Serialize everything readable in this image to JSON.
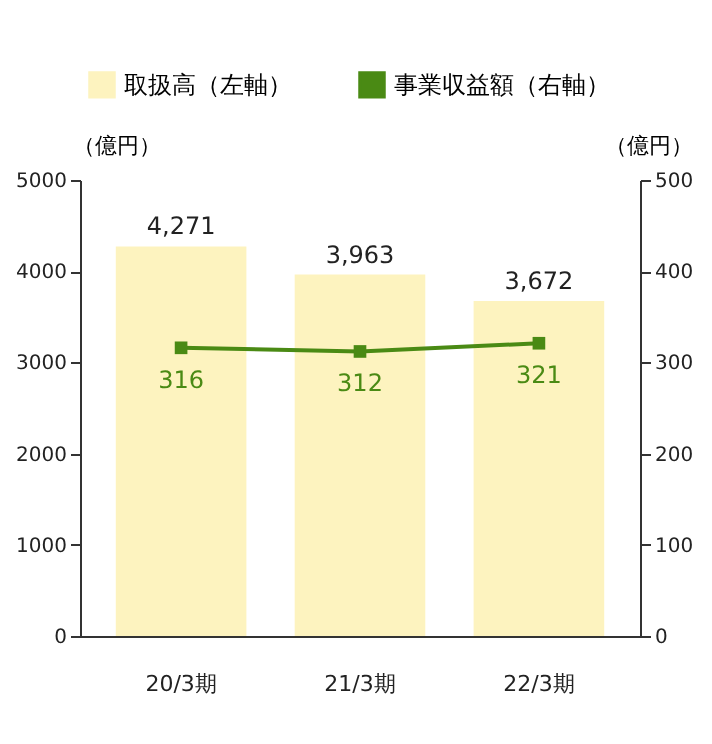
{
  "chart_data": {
    "type": "bar",
    "categories": [
      "20/3期",
      "21/3期",
      "22/3期"
    ],
    "series": [
      {
        "name": "取扱高（左軸）",
        "color": "#fdf3bf",
        "values": [
          4271,
          3963,
          3672
        ],
        "value_labels": [
          "4,271",
          "3,963",
          "3,672"
        ]
      },
      {
        "name": "事業収益額（右軸）",
        "type": "line",
        "axis": "y2",
        "color": "#4a8a14",
        "values": [
          316,
          312,
          321
        ]
      }
    ],
    "ylabel": "（億円）",
    "y2label": "（億円）",
    "ylim": [
      0,
      5000
    ],
    "yticks": [
      0,
      1000,
      2000,
      3000,
      4000,
      5000
    ],
    "y2lim": [
      0,
      500
    ],
    "y2ticks": [
      0,
      100,
      200,
      300,
      400,
      500
    ],
    "data_labels": true,
    "legend": "top",
    "marker": "square"
  }
}
